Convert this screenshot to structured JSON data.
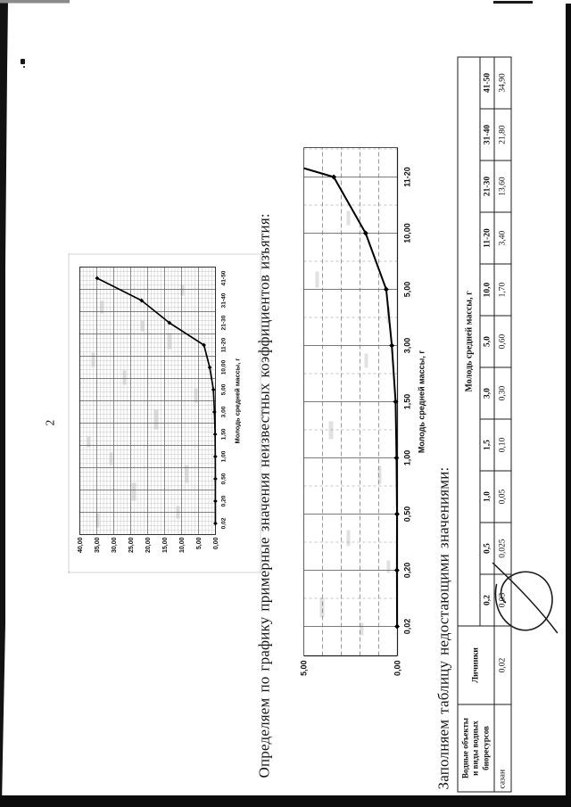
{
  "page": {
    "number": "2"
  },
  "headings": {
    "h1": "Определяем по графику примерные значения неизвестных коэффициентов изъятия:",
    "h2": "Заполняем таблицу недостающими значениями:"
  },
  "chart_data": [
    {
      "type": "line",
      "title": "",
      "xlabel": "Молодь средней массы, г",
      "categories": [
        "0,02",
        "0,20",
        "0,50",
        "1,00",
        "1,50",
        "3,00",
        "5,00",
        "10,00",
        "11-20",
        "21-30",
        "31-40",
        "41-50"
      ],
      "values": [
        0.02,
        0.03,
        0.025,
        0.05,
        0.1,
        0.3,
        0.6,
        1.7,
        3.4,
        13.6,
        21.8,
        34.9
      ],
      "ylim": [
        0,
        40
      ],
      "yticks": [
        "0,00",
        "5,00",
        "10,00",
        "15,00",
        "20,00",
        "25,00",
        "30,00",
        "35,00",
        "40,00"
      ],
      "y_tick_values": [
        0,
        5,
        10,
        15,
        20,
        25,
        30,
        35,
        40
      ],
      "grid": "fine-graph-paper",
      "legend": "none",
      "marker": "diamond"
    },
    {
      "type": "line",
      "title": "",
      "xlabel": "Молодь средней массы, г",
      "categories": [
        "0,02",
        "0,20",
        "0,50",
        "1,00",
        "1,50",
        "3,00",
        "5,00",
        "10,00",
        "11-20"
      ],
      "values": [
        0.02,
        0.03,
        0.025,
        0.05,
        0.1,
        0.3,
        0.6,
        1.7,
        3.4
      ],
      "offplot_next_value": 13.6,
      "ylim": [
        0,
        5
      ],
      "yticks": [
        "0,00",
        "5,00"
      ],
      "y_tick_values": [
        0,
        5
      ],
      "grid": "coarse",
      "legend": "none",
      "marker": "diamond"
    }
  ],
  "table": {
    "header_col1_lines": [
      "Водные объекты",
      "и виды водных",
      "биоресурсов"
    ],
    "header_col2": "Личинки",
    "group_header": "Молодь средней массы, г",
    "columns": [
      "0,2",
      "0,5",
      "1,0",
      "1,5",
      "3,0",
      "5,0",
      "10,0",
      "11-20",
      "21-30",
      "31-40",
      "41-50"
    ],
    "rows": [
      {
        "name": "сазан",
        "larvae": "0,02",
        "values": [
          "0,03",
          "0,025",
          "0,05",
          "0,10",
          "0,30",
          "0,60",
          "1,70",
          "3,40",
          "13,60",
          "21,80",
          "34,90"
        ]
      }
    ]
  }
}
